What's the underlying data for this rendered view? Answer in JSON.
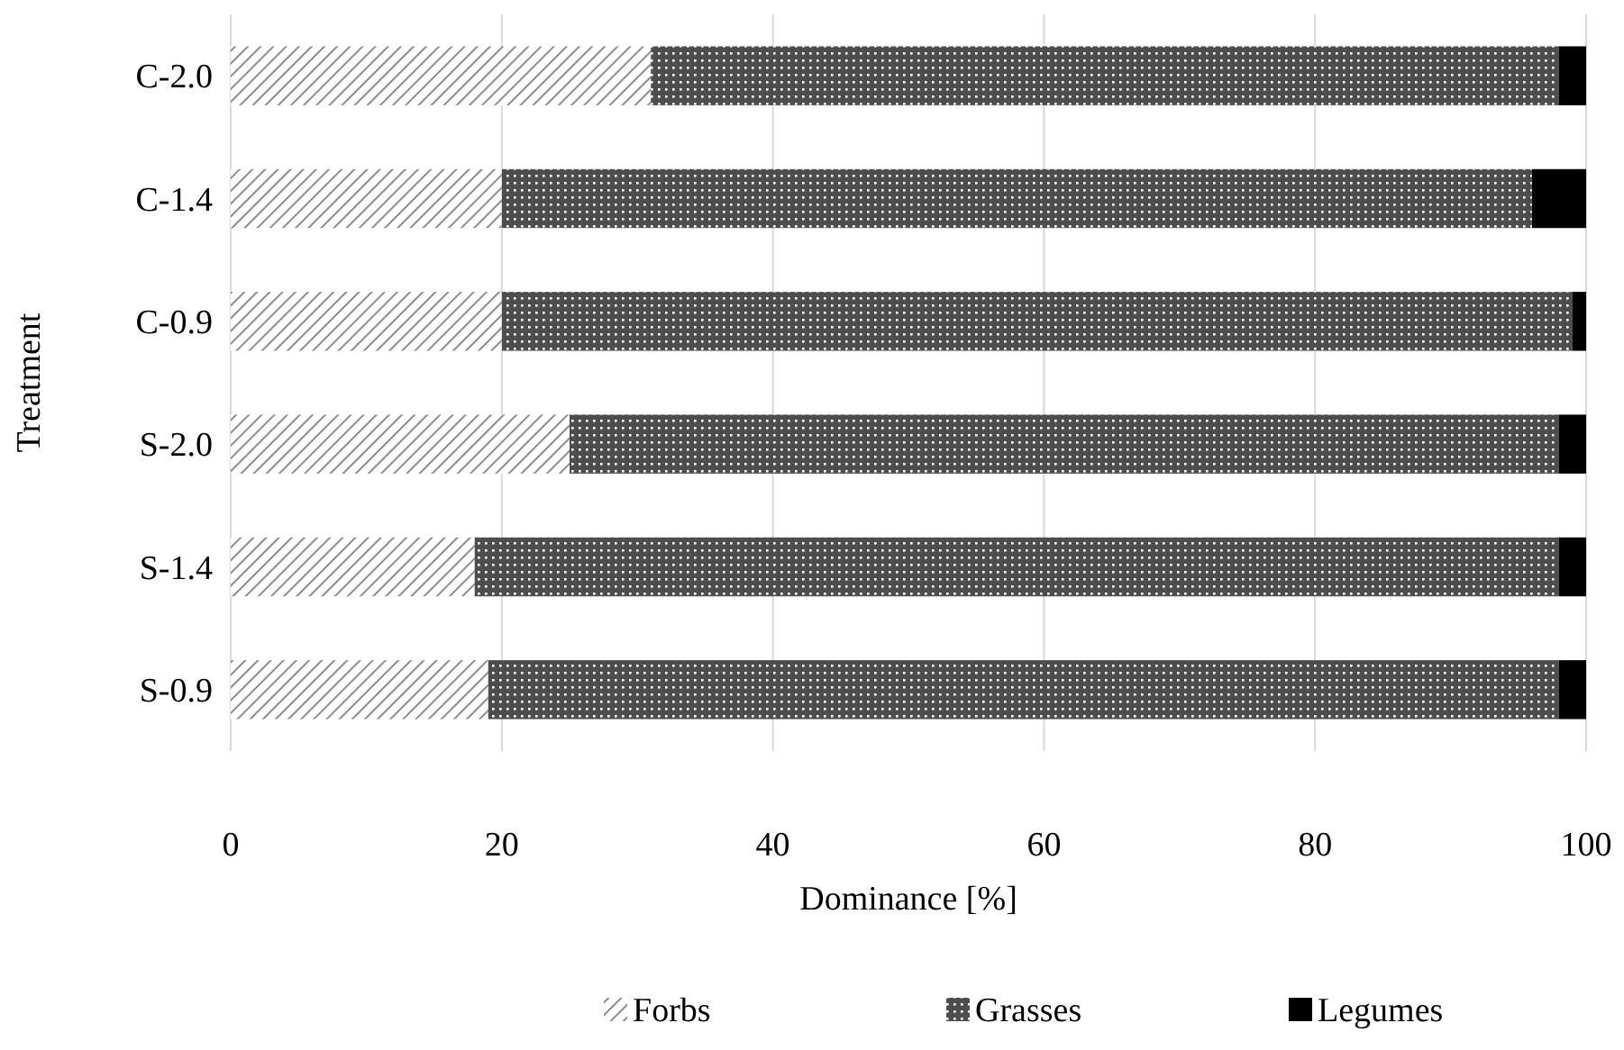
{
  "chart_data": {
    "type": "bar",
    "orientation": "horizontal",
    "stacked": true,
    "xlabel": "Dominance [%]",
    "ylabel": "Treatment",
    "categories": [
      "C-2.0",
      "C-1.4",
      "C-0.9",
      "S-2.0",
      "S-1.4",
      "S-0.9"
    ],
    "series": [
      {
        "name": "Forbs",
        "color": "#8c8c8c",
        "values": [
          31,
          20,
          20,
          25,
          18,
          19
        ]
      },
      {
        "name": "Grasses",
        "color": "#4d4d4d",
        "values": [
          67,
          76,
          79,
          73,
          80,
          79
        ]
      },
      {
        "name": "Legumes",
        "color": "#000000",
        "values": [
          2,
          4,
          1,
          2,
          2,
          2
        ]
      }
    ],
    "xlim": [
      0,
      100
    ],
    "xticks": [
      0,
      20,
      40,
      60,
      80,
      100
    ],
    "grid": "x",
    "legend": "bottom"
  }
}
